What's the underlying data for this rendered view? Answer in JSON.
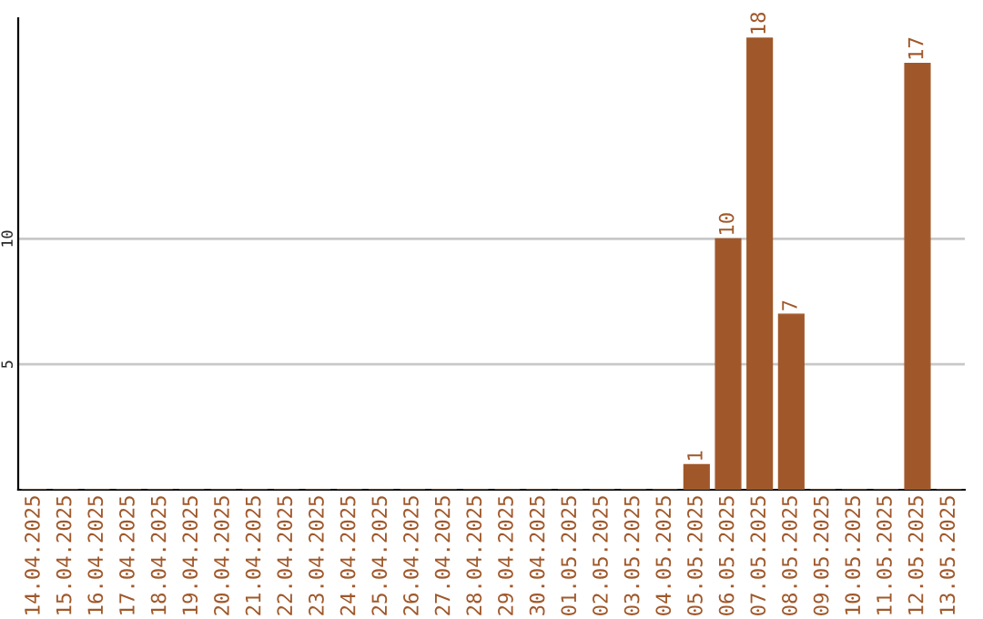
{
  "chart_data": {
    "type": "bar",
    "categories": [
      "14.04.2025",
      "15.04.2025",
      "16.04.2025",
      "17.04.2025",
      "18.04.2025",
      "19.04.2025",
      "20.04.2025",
      "21.04.2025",
      "22.04.2025",
      "23.04.2025",
      "24.04.2025",
      "25.04.2025",
      "26.04.2025",
      "27.04.2025",
      "28.04.2025",
      "29.04.2025",
      "30.04.2025",
      "01.05.2025",
      "02.05.2025",
      "03.05.2025",
      "04.05.2025",
      "05.05.2025",
      "06.05.2025",
      "07.05.2025",
      "08.05.2025",
      "09.05.2025",
      "10.05.2025",
      "11.05.2025",
      "12.05.2025",
      "13.05.2025"
    ],
    "values": [
      0,
      0,
      0,
      0,
      0,
      0,
      0,
      0,
      0,
      0,
      0,
      0,
      0,
      0,
      0,
      0,
      0,
      0,
      0,
      0,
      0,
      1,
      10,
      18,
      7,
      0,
      0,
      0,
      17,
      0
    ],
    "value_labels": [
      null,
      null,
      null,
      null,
      null,
      null,
      null,
      null,
      null,
      null,
      null,
      null,
      null,
      null,
      null,
      null,
      null,
      null,
      null,
      null,
      null,
      "1",
      "10",
      "18",
      "7",
      null,
      null,
      null,
      "17",
      null
    ],
    "color": "#a0582a",
    "ylim": [
      0,
      18.8
    ],
    "yticks": [
      5,
      10
    ],
    "grid": "y",
    "legend": false
  }
}
